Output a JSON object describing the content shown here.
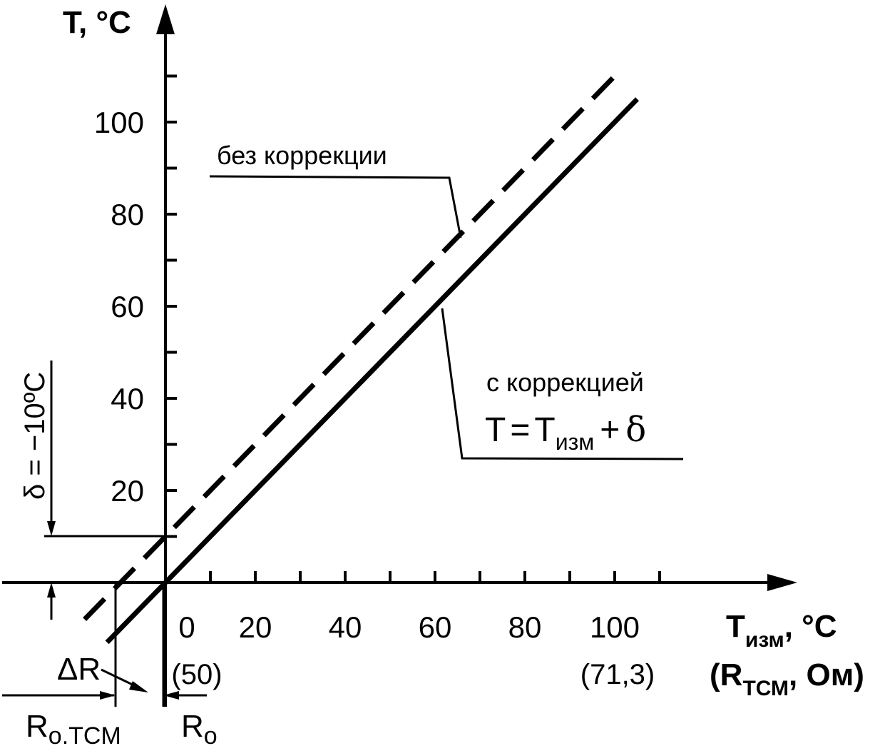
{
  "chart_data": {
    "type": "line",
    "y_axis": {
      "label": "T, °C",
      "ticks": [
        "20",
        "40",
        "60",
        "80",
        "100"
      ]
    },
    "x_axis": {
      "label": "Tизм, °C",
      "label_main": "T",
      "label_sub": "изм",
      "label_unit": ", °C",
      "label2": "(RТСМ, Ом)",
      "label2_open": "(R",
      "label2_sub": "ТСМ",
      "label2_rest": ", Ом)",
      "ticks": [
        "0",
        "20",
        "40",
        "60",
        "80",
        "100"
      ],
      "resistance_ticks": [
        "(50)",
        "(71,3)"
      ]
    },
    "series": [
      {
        "name": "без коррекции",
        "style": "dashed",
        "x": [
          -18,
          100
        ],
        "y": [
          -8,
          110
        ]
      },
      {
        "name": "с коррекцией",
        "style": "solid",
        "x": [
          -13,
          105
        ],
        "y": [
          -13,
          105
        ]
      }
    ],
    "annotations": {
      "correction_formula": "T = Tизм + δ",
      "formula_lhs": "T",
      "formula_eq": "=",
      "formula_t": "T",
      "formula_sub": "изм",
      "formula_plus": "+",
      "formula_delta": "δ",
      "delta_label": "δ = −10ºC",
      "delta_R_label": "ΔR",
      "r0_tcm_label": "Ro.TCM",
      "r0_tcm_main": "R",
      "r0_tcm_sub": "o.TCM",
      "r0_label": "Ro",
      "r0_main": "R",
      "r0_sub": "o"
    },
    "xlim": [
      -36,
      112
    ],
    "ylim": [
      -13,
      118
    ],
    "grid": false
  }
}
